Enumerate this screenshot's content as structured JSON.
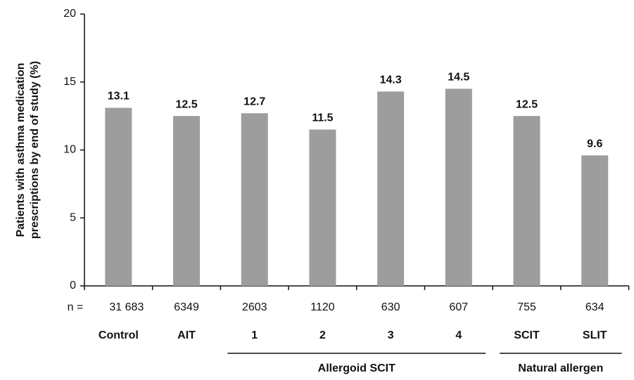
{
  "chart_data": {
    "type": "bar",
    "y_label_lines": [
      "Patients with asthma medication",
      "prescriptions by end of study (%)"
    ],
    "categories": [
      "Control",
      "AIT",
      "1",
      "2",
      "3",
      "4",
      "SCIT",
      "SLIT"
    ],
    "values": [
      13.1,
      12.5,
      12.7,
      11.5,
      14.3,
      14.5,
      12.5,
      9.6
    ],
    "sample_size_prefix": "n =",
    "sample_sizes": [
      {
        "value": 31683,
        "label": "31 683"
      },
      6349,
      2603,
      1120,
      630,
      607,
      755,
      634
    ],
    "groups": [
      {
        "label": "Allergoid SCIT",
        "members": [
          2,
          3,
          4,
          5
        ]
      },
      {
        "label": "Natural allergen",
        "members": [
          6,
          7
        ]
      }
    ],
    "color": "#9d9d9d",
    "ylim": [
      0,
      20
    ],
    "yticks": [
      0,
      5,
      10,
      15,
      20
    ]
  }
}
